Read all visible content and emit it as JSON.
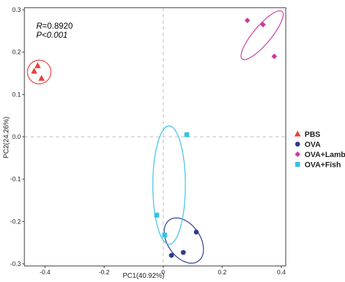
{
  "chart_data": {
    "type": "scatter",
    "xlabel": "PC1(40.92%)",
    "ylabel": "PC2(24.26%)",
    "xlim": [
      -0.47,
      0.415
    ],
    "ylim": [
      -0.305,
      0.305
    ],
    "x_ticks": [
      -0.4,
      -0.2,
      0.0,
      0.2,
      0.4
    ],
    "x_tick_labels": [
      "-0.4",
      "-0.2",
      "0",
      "0.2",
      "0.4"
    ],
    "y_ticks": [
      -0.3,
      -0.2,
      -0.1,
      0.0,
      0.1,
      0.2,
      0.3
    ],
    "y_tick_labels": [
      "-0.3",
      "-0.2",
      "-0.1",
      "0.0",
      "0.1",
      "0.2",
      "0.3"
    ],
    "annotations": {
      "r_prefix": "R",
      "r_value": "=0.8920",
      "p_text": "P<0.001"
    },
    "reference_lines": {
      "x": 0,
      "y": 0,
      "style": "dashed"
    },
    "grid": false,
    "legend_position": "right",
    "series": [
      {
        "name": "PBS",
        "color": "#e8413c",
        "marker": "triangle",
        "points": [
          {
            "x": -0.425,
            "y": 0.168
          },
          {
            "x": -0.437,
            "y": 0.155
          },
          {
            "x": -0.412,
            "y": 0.138
          }
        ],
        "ellipse": {
          "cx": -0.42,
          "cy": 0.153,
          "rx": 0.04,
          "ry": 0.04,
          "angle": -10
        }
      },
      {
        "name": "OVA",
        "color": "#2b3a8c",
        "marker": "circle",
        "points": [
          {
            "x": 0.112,
            "y": -0.225
          },
          {
            "x": 0.068,
            "y": -0.273
          },
          {
            "x": 0.028,
            "y": -0.28
          }
        ],
        "ellipse": {
          "cx": 0.07,
          "cy": -0.245,
          "rx": 0.085,
          "ry": 0.055,
          "angle": 55
        }
      },
      {
        "name": "OVA+Lamb",
        "color": "#cc3a9c",
        "marker": "diamond",
        "points": [
          {
            "x": 0.285,
            "y": 0.275
          },
          {
            "x": 0.338,
            "y": 0.265
          },
          {
            "x": 0.376,
            "y": 0.19
          }
        ],
        "ellipse": {
          "cx": 0.335,
          "cy": 0.24,
          "rx": 0.105,
          "ry": 0.03,
          "angle": -50
        }
      },
      {
        "name": "OVA+Fish",
        "color": "#37c2e3",
        "marker": "square",
        "points": [
          {
            "x": 0.08,
            "y": 0.005
          },
          {
            "x": -0.022,
            "y": -0.185
          },
          {
            "x": 0.005,
            "y": -0.232
          }
        ],
        "ellipse": {
          "cx": 0.02,
          "cy": -0.114,
          "rx": 0.055,
          "ry": 0.2,
          "angle": 0
        }
      }
    ]
  }
}
